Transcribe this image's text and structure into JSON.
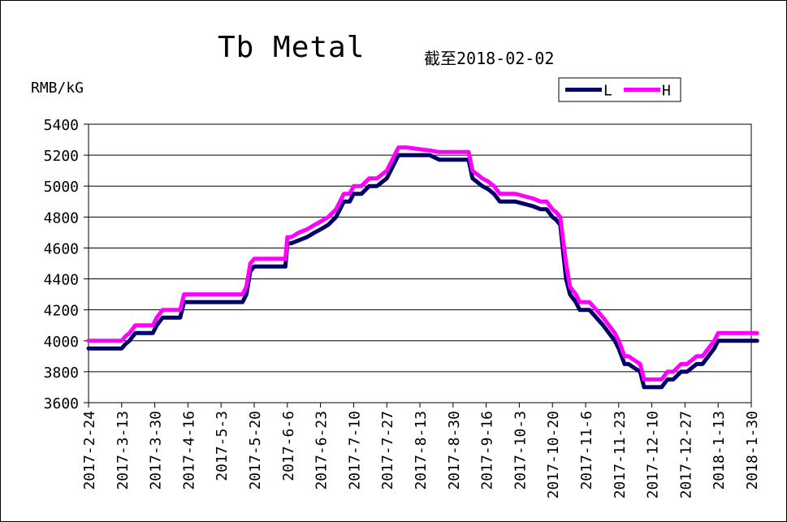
{
  "chart_data": {
    "type": "line",
    "title": "Tb Metal",
    "subtitle": "截至2018-02-02",
    "ylabel": "RMB/kG",
    "xlabel": "",
    "ylim": [
      3600,
      5400
    ],
    "yticks": [
      3600,
      3800,
      4000,
      4200,
      4400,
      4600,
      4800,
      5000,
      5200,
      5400
    ],
    "x_tick_labels": [
      "2017-2-24",
      "2017-3-13",
      "2017-3-30",
      "2017-4-16",
      "2017-5-3",
      "2017-5-20",
      "2017-6-6",
      "2017-6-23",
      "2017-7-10",
      "2017-7-27",
      "2017-8-13",
      "2017-8-30",
      "2017-9-16",
      "2017-10-3",
      "2017-10-20",
      "2017-11-6",
      "2017-11-23",
      "2017-12-10",
      "2017-12-27",
      "2018-1-13",
      "2018-1-30"
    ],
    "grid": true,
    "legend_position": "top-right",
    "series": [
      {
        "name": "L",
        "color": "#000066",
        "x": [
          "2017-2-24",
          "2017-3-13",
          "2017-3-15",
          "2017-3-17",
          "2017-3-20",
          "2017-3-29",
          "2017-3-31",
          "2017-4-3",
          "2017-4-12",
          "2017-4-14",
          "2017-5-14",
          "2017-5-16",
          "2017-5-18",
          "2017-5-20",
          "2017-6-5",
          "2017-6-6",
          "2017-6-8",
          "2017-6-12",
          "2017-6-16",
          "2017-6-20",
          "2017-6-23",
          "2017-6-27",
          "2017-7-1",
          "2017-7-5",
          "2017-7-8",
          "2017-7-10",
          "2017-7-14",
          "2017-7-18",
          "2017-7-22",
          "2017-7-27",
          "2017-7-31",
          "2017-8-2",
          "2017-8-4",
          "2017-8-6",
          "2017-8-18",
          "2017-8-23",
          "2017-9-7",
          "2017-9-9",
          "2017-9-14",
          "2017-9-17",
          "2017-9-20",
          "2017-9-23",
          "2017-10-1",
          "2017-10-10",
          "2017-10-14",
          "2017-10-17",
          "2017-10-20",
          "2017-10-22",
          "2017-10-24",
          "2017-10-27",
          "2017-10-29",
          "2017-11-1",
          "2017-11-3",
          "2017-11-6",
          "2017-11-8",
          "2017-11-15",
          "2017-11-18",
          "2017-11-21",
          "2017-11-23",
          "2017-11-26",
          "2017-11-28",
          "2017-12-4",
          "2017-12-6",
          "2017-12-7",
          "2017-12-15",
          "2017-12-18",
          "2017-12-21",
          "2017-12-25",
          "2017-12-28",
          "2018-1-2",
          "2018-1-5",
          "2018-1-8",
          "2018-1-11",
          "2018-1-13",
          "2018-1-14",
          "2018-2-2"
        ],
        "y": [
          3950,
          3950,
          3980,
          4000,
          4050,
          4050,
          4100,
          4150,
          4150,
          4250,
          4250,
          4300,
          4450,
          4480,
          4480,
          4630,
          4630,
          4650,
          4670,
          4700,
          4720,
          4750,
          4800,
          4900,
          4900,
          4950,
          4950,
          5000,
          5000,
          5050,
          5150,
          5200,
          5200,
          5200,
          5200,
          5170,
          5170,
          5050,
          5000,
          4980,
          4950,
          4900,
          4900,
          4870,
          4850,
          4850,
          4800,
          4780,
          4750,
          4400,
          4300,
          4250,
          4200,
          4200,
          4200,
          4100,
          4050,
          4000,
          3950,
          3850,
          3850,
          3800,
          3700,
          3700,
          3700,
          3750,
          3750,
          3800,
          3800,
          3850,
          3850,
          3900,
          3950,
          4000,
          4000,
          4000
        ]
      },
      {
        "name": "H",
        "color": "#ff00ff",
        "x": [
          "2017-2-24",
          "2017-3-13",
          "2017-3-15",
          "2017-3-17",
          "2017-3-20",
          "2017-3-29",
          "2017-3-31",
          "2017-4-3",
          "2017-4-12",
          "2017-4-14",
          "2017-5-14",
          "2017-5-16",
          "2017-5-18",
          "2017-5-20",
          "2017-6-5",
          "2017-6-6",
          "2017-6-8",
          "2017-6-12",
          "2017-6-16",
          "2017-6-20",
          "2017-6-23",
          "2017-6-27",
          "2017-7-1",
          "2017-7-5",
          "2017-7-8",
          "2017-7-10",
          "2017-7-14",
          "2017-7-18",
          "2017-7-22",
          "2017-7-27",
          "2017-7-31",
          "2017-8-2",
          "2017-8-4",
          "2017-8-6",
          "2017-8-18",
          "2017-8-23",
          "2017-9-7",
          "2017-9-9",
          "2017-9-14",
          "2017-9-17",
          "2017-9-20",
          "2017-9-23",
          "2017-10-1",
          "2017-10-10",
          "2017-10-14",
          "2017-10-17",
          "2017-10-20",
          "2017-10-22",
          "2017-10-24",
          "2017-10-27",
          "2017-10-29",
          "2017-11-1",
          "2017-11-3",
          "2017-11-6",
          "2017-11-8",
          "2017-11-15",
          "2017-11-18",
          "2017-11-21",
          "2017-11-23",
          "2017-11-26",
          "2017-11-28",
          "2017-12-4",
          "2017-12-6",
          "2017-12-7",
          "2017-12-15",
          "2017-12-18",
          "2017-12-21",
          "2017-12-25",
          "2017-12-28",
          "2018-1-2",
          "2018-1-5",
          "2018-1-8",
          "2018-1-11",
          "2018-1-13",
          "2018-1-14",
          "2018-2-2"
        ],
        "y": [
          4000,
          4000,
          4030,
          4050,
          4100,
          4100,
          4150,
          4200,
          4200,
          4300,
          4300,
          4350,
          4500,
          4530,
          4530,
          4670,
          4670,
          4700,
          4720,
          4750,
          4770,
          4800,
          4850,
          4950,
          4950,
          5000,
          5000,
          5050,
          5050,
          5100,
          5200,
          5250,
          5250,
          5250,
          5230,
          5220,
          5220,
          5100,
          5050,
          5030,
          5000,
          4950,
          4950,
          4920,
          4900,
          4900,
          4850,
          4830,
          4800,
          4500,
          4350,
          4300,
          4250,
          4250,
          4250,
          4150,
          4100,
          4050,
          4000,
          3900,
          3900,
          3850,
          3750,
          3750,
          3750,
          3800,
          3800,
          3850,
          3850,
          3900,
          3900,
          3950,
          4000,
          4050,
          4050,
          4050
        ]
      }
    ]
  }
}
